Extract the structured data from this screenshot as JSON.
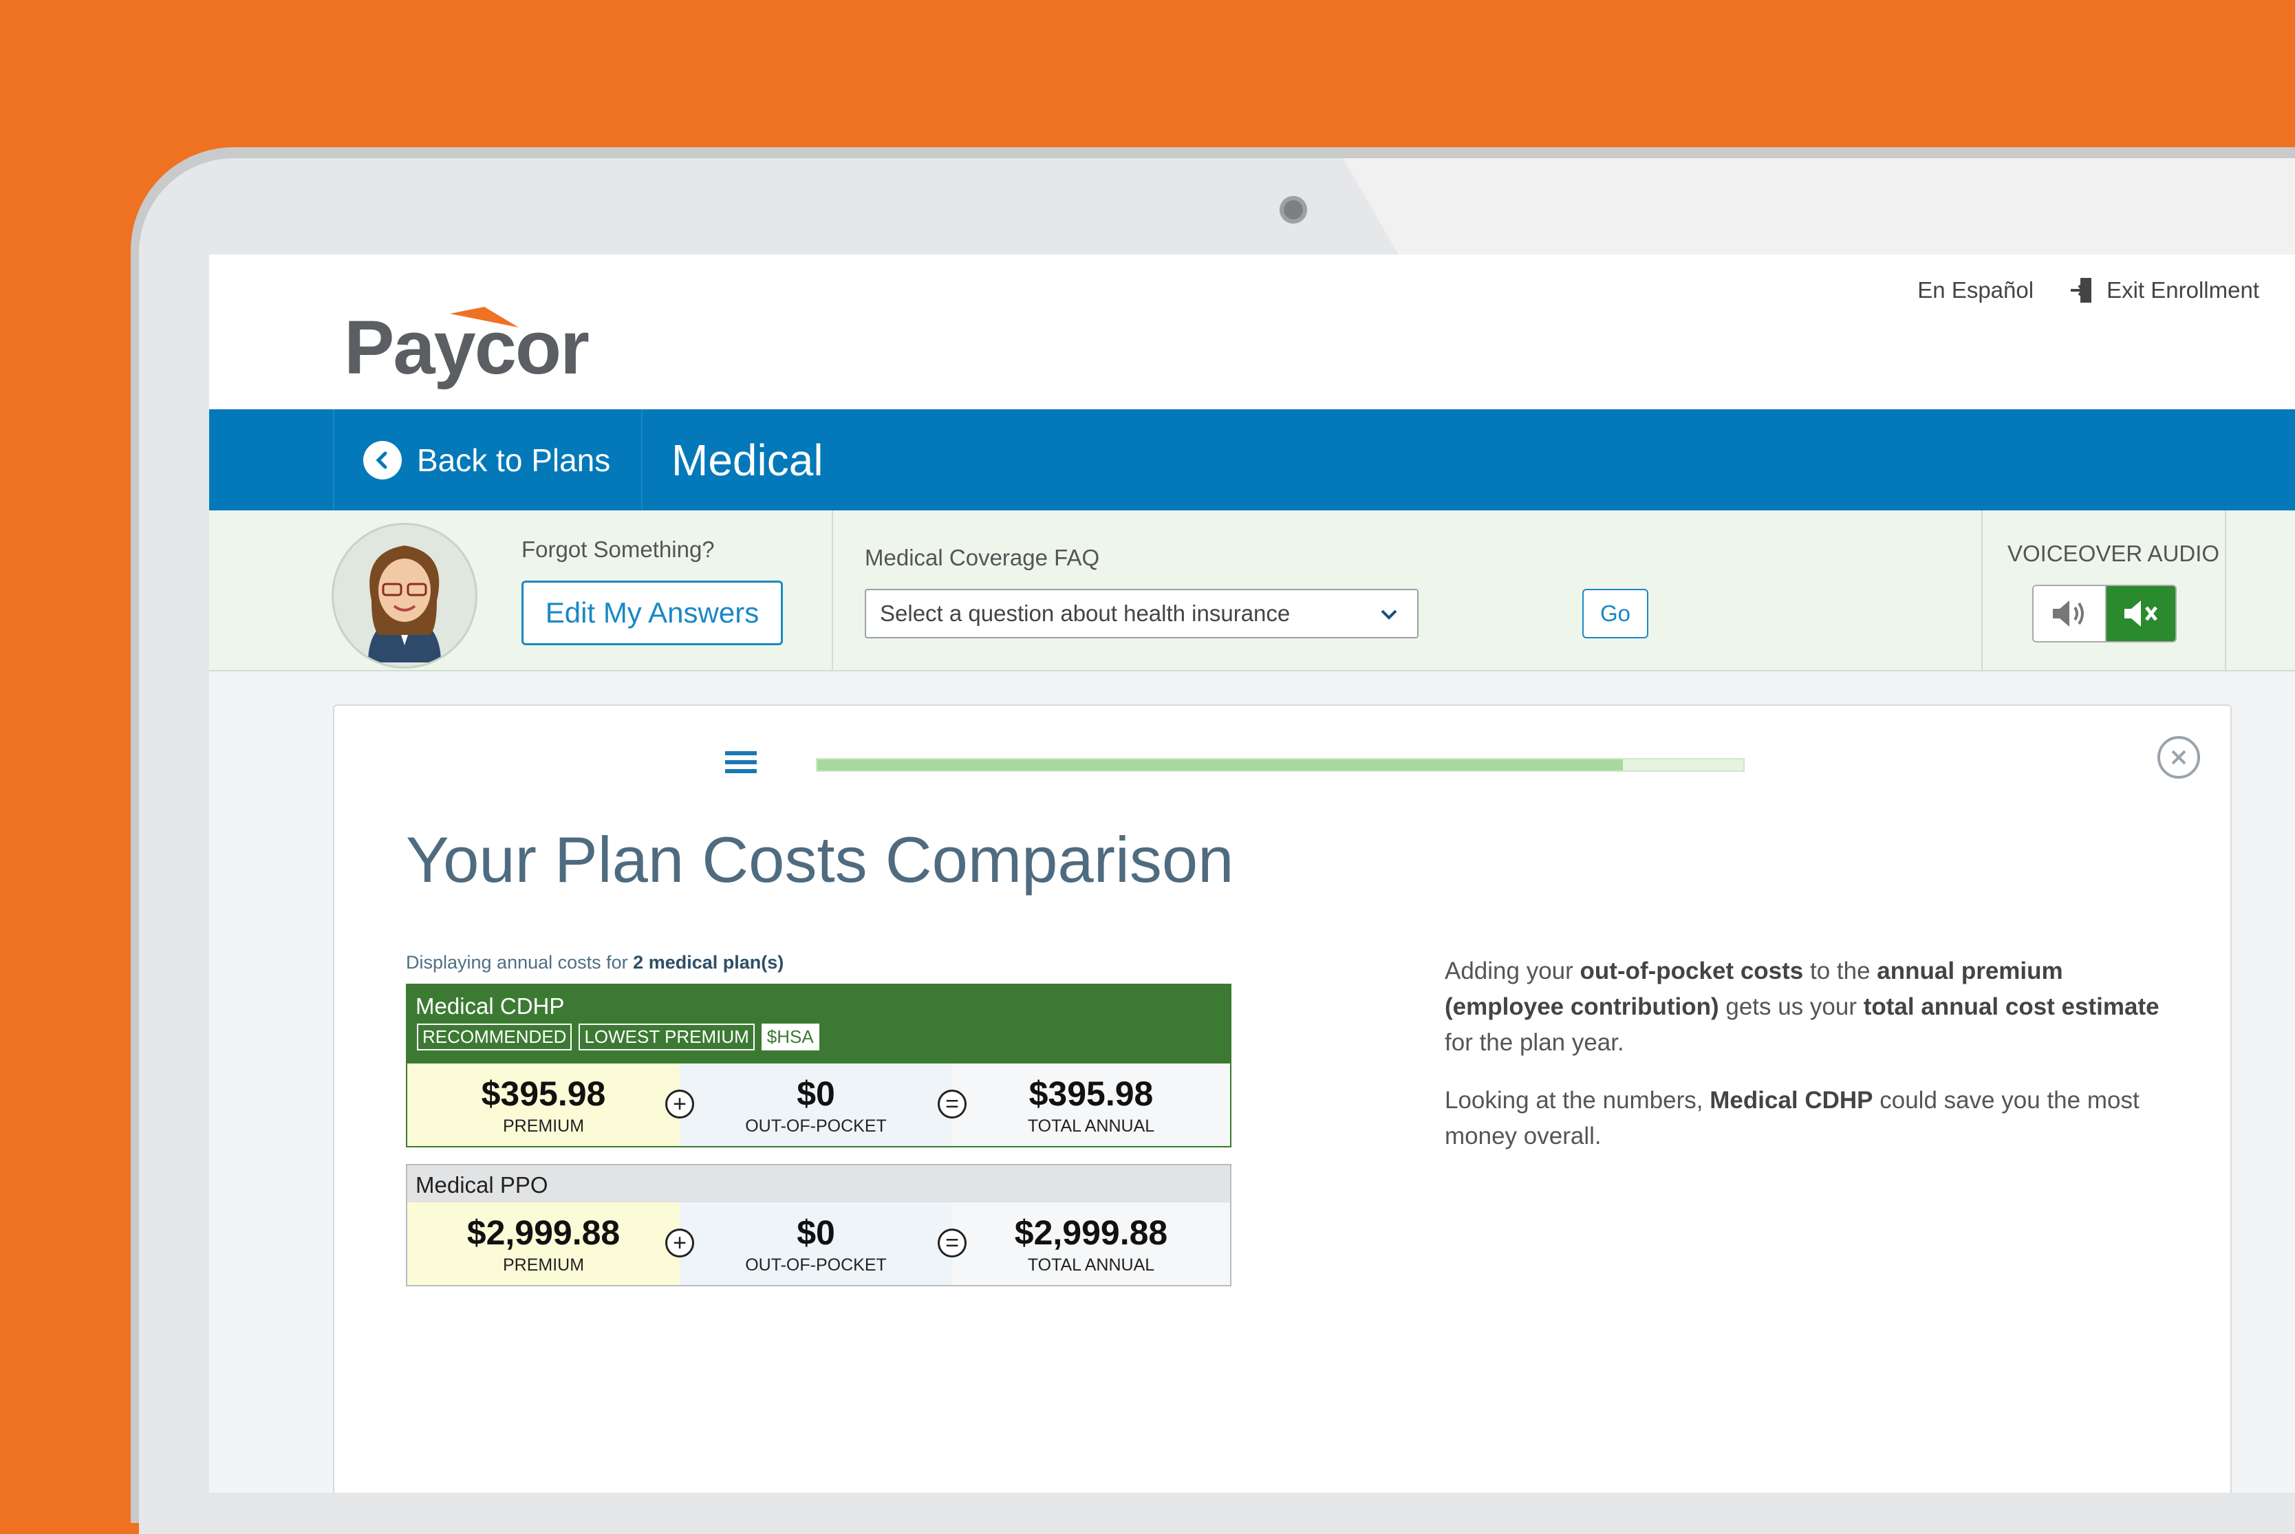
{
  "header": {
    "logo_text": "Paycor",
    "language_link": "En Español",
    "exit_label": "Exit Enrollment"
  },
  "navbar": {
    "back_label": "Back to Plans",
    "section_title": "Medical"
  },
  "help": {
    "forgot_label": "Forgot Something?",
    "edit_button": "Edit My Answers",
    "faq_label": "Medical Coverage FAQ",
    "faq_placeholder": "Select a question about health insurance",
    "go_button": "Go",
    "voiceover_label": "VOICEOVER AUDIO",
    "voiceover_state": "muted"
  },
  "card": {
    "progress": 0.87,
    "title": "Your Plan Costs Comparison",
    "display_prefix": "Displaying annual costs for ",
    "display_count": "2 medical plan(s)",
    "plans": [
      {
        "name": "Medical CDHP",
        "badges": [
          "RECOMMENDED",
          "LOWEST PREMIUM"
        ],
        "hsa_badge": "$HSA",
        "premium": "$395.98",
        "premium_label": "PREMIUM",
        "oop": "$0",
        "oop_label": "OUT-OF-POCKET",
        "total": "$395.98",
        "total_label": "TOTAL ANNUAL"
      },
      {
        "name": "Medical PPO",
        "premium": "$2,999.88",
        "premium_label": "PREMIUM",
        "oop": "$0",
        "oop_label": "OUT-OF-POCKET",
        "total": "$2,999.88",
        "total_label": "TOTAL ANNUAL"
      }
    ],
    "explain_p1": {
      "t1": "Adding your ",
      "b1": "out-of-pocket costs",
      "t2": " to the ",
      "b2": "annual premium (employee contribution)",
      "t3": " gets us your ",
      "b3": "total annual cost estimate",
      "t4": " for the plan year."
    },
    "explain_p2": {
      "t1": "Looking at the numbers, ",
      "b1": "Medical CDHP",
      "t2": " could save you the most money overall."
    }
  },
  "colors": {
    "background": "#ee7222",
    "brand_blue": "#0479b9",
    "plan_green": "#3c7a33",
    "progress_fill": "#a8d89c"
  }
}
